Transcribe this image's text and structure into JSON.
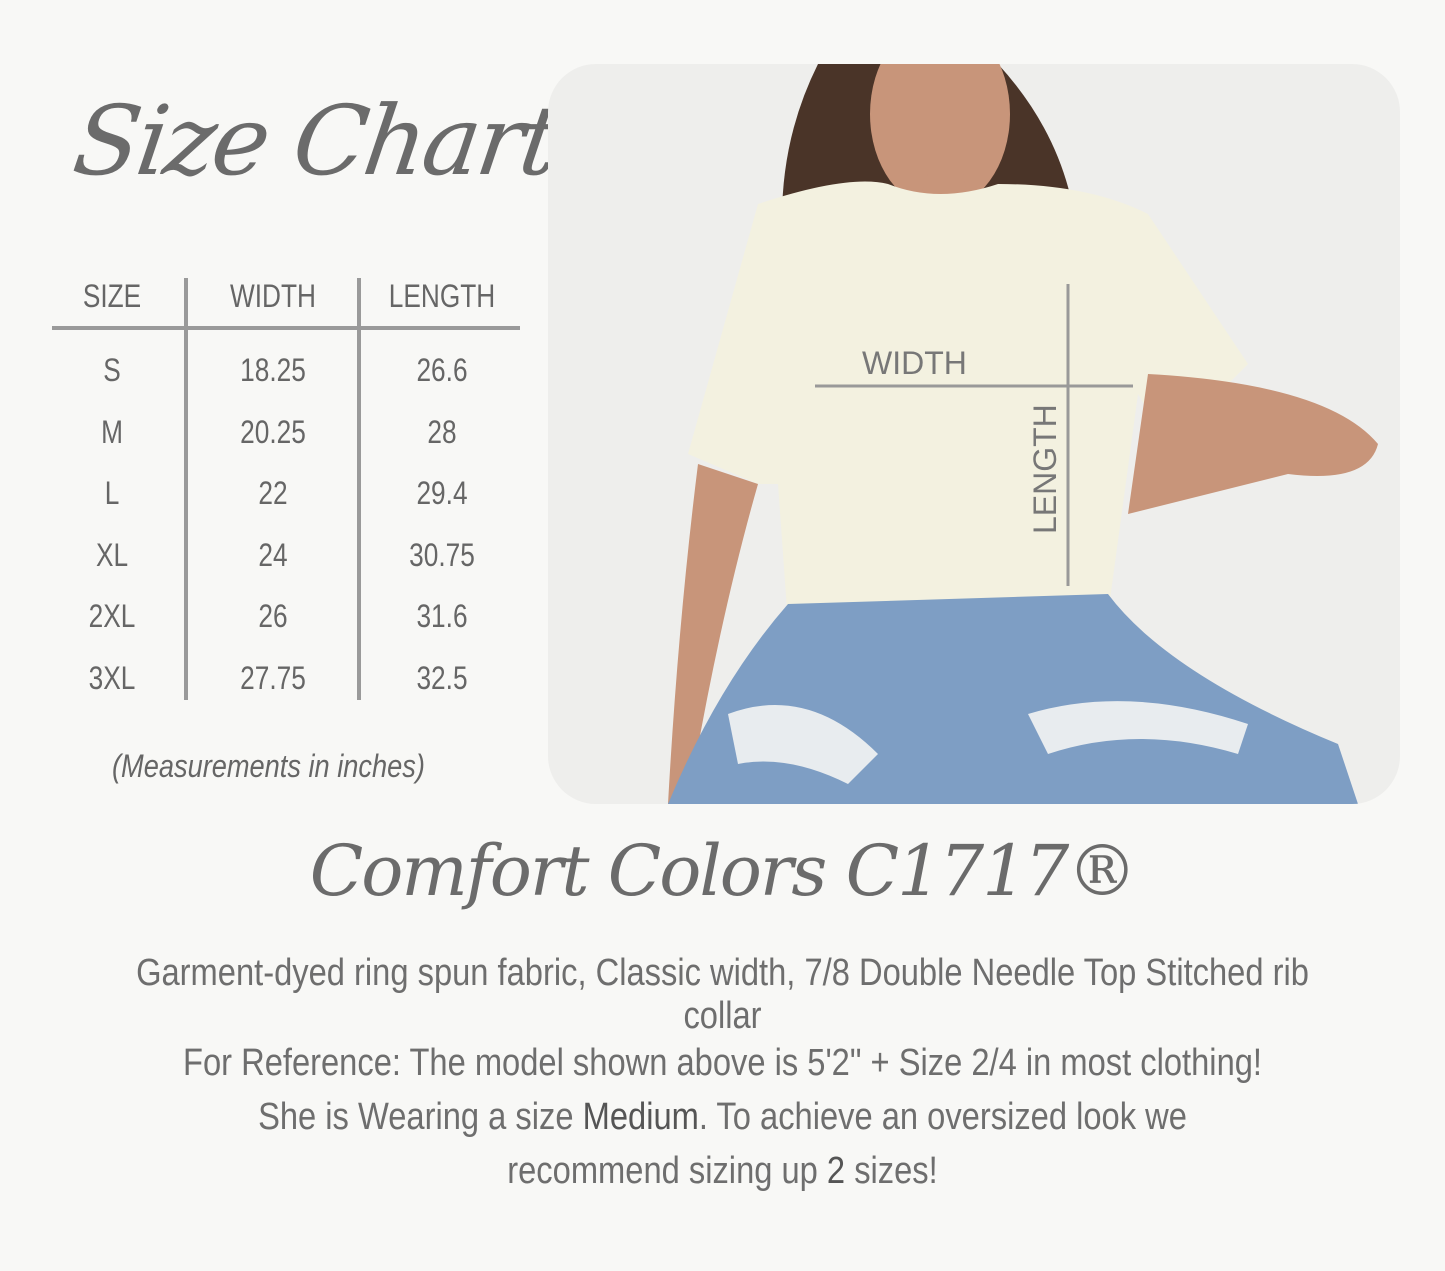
{
  "title": "Size Chart",
  "table": {
    "headers": [
      "SIZE",
      "WIDTH",
      "LENGTH"
    ],
    "rows": [
      [
        "S",
        "18.25",
        "26.6"
      ],
      [
        "M",
        "20.25",
        "28"
      ],
      [
        "L",
        "22",
        "29.4"
      ],
      [
        "XL",
        "24",
        "30.75"
      ],
      [
        "2XL",
        "26",
        "31.6"
      ],
      [
        "3XL",
        "27.75",
        "32.5"
      ]
    ]
  },
  "note": "(Measurements in inches)",
  "photo": {
    "width_label": "WIDTH",
    "length_label": "LENGTH"
  },
  "brand": "Comfort Colors C1717®",
  "description": "Garment-dyed ring spun fabric, Classic width, 7/8 Double Needle Top Stitched rib collar",
  "reference": {
    "line1": "For Reference: The model shown above is 5'2\" + Size 2/4 in most clothing!",
    "line2_pre": "She is Wearing a size ",
    "line2_bold": "Medium",
    "line2_post": ". To achieve an oversized look we",
    "line3_pre": "recommend sizing up ",
    "line3_bold": "2",
    "line3_post": " sizes!"
  },
  "colors": {
    "text": "#666666",
    "lines": "#9a9a9a",
    "shirt": "#f3f1e0",
    "jeans": "#7e9ec4"
  }
}
